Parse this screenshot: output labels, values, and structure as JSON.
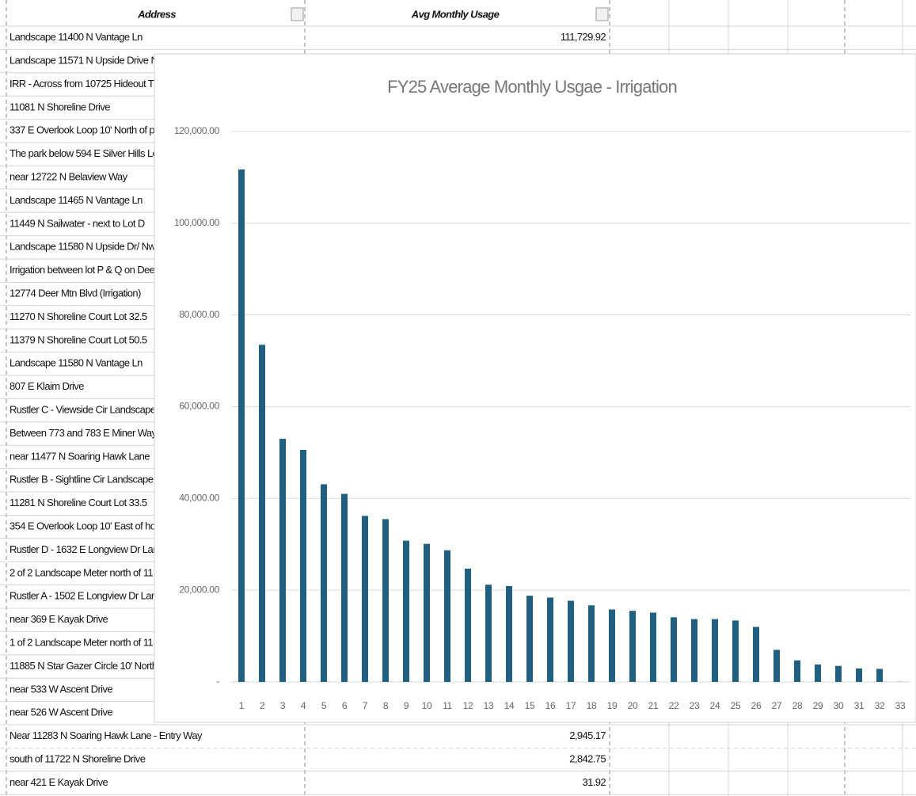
{
  "table": {
    "header": [
      "Address",
      "Avg Monthly Usage"
    ],
    "rows": [
      {
        "address": "Landscape 11400 N Vantage Ln",
        "usage": "111,729.92"
      },
      {
        "address": "Landscape 11571 N Upside Drive N"
      },
      {
        "address": "IRR - Across from 10725 Hideout T"
      },
      {
        "address": "11081 N Shoreline Drive"
      },
      {
        "address": "337 E Overlook Loop 10' North of p"
      },
      {
        "address": "The park below 594 E Silver Hills Lo"
      },
      {
        "address": "near 12722 N Belaview Way"
      },
      {
        "address": "Landscape 11465 N Vantage Ln"
      },
      {
        "address": "11449 N Sailwater - next to Lot D"
      },
      {
        "address": "Landscape 11580 N Upside Dr/ Nw"
      },
      {
        "address": "Irrigation between lot P & Q on Dee"
      },
      {
        "address": "12774 Deer Mtn Blvd (Irrigation)"
      },
      {
        "address": "11270 N Shoreline Court Lot 32.5"
      },
      {
        "address": "11379 N Shoreline Court Lot 50.5"
      },
      {
        "address": "Landscape 11580 N Vantage Ln"
      },
      {
        "address": "807 E Klaim Drive"
      },
      {
        "address": "Rustler C - Viewside Cir Landscape"
      },
      {
        "address": "Between 773 and 783 E Miner Way"
      },
      {
        "address": "near 11477 N Soaring Hawk Lane"
      },
      {
        "address": "Rustler B - Sightline Cir Landscape"
      },
      {
        "address": "11281 N Shoreline Court Lot 33.5"
      },
      {
        "address": "354 E Overlook Loop 10' East of ho"
      },
      {
        "address": "Rustler D - 1632 E Longview Dr Lar"
      },
      {
        "address": "2 of 2 Landscape Meter north of 11"
      },
      {
        "address": "Rustler A - 1502 E Longview Dr Lar"
      },
      {
        "address": "near 369 E Kayak Drive"
      },
      {
        "address": "1 of 2 Landscape Meter north of 11"
      },
      {
        "address": "11885 N Star Gazer Circle 10' North"
      },
      {
        "address": "near 533 W Ascent Drive"
      },
      {
        "address": "near 526 W Ascent Drive"
      },
      {
        "address": "Near 11283 N Soaring Hawk Lane - Entry Way",
        "usage": "2,945.17"
      },
      {
        "address": "south of 11722 N Shoreline Drive",
        "usage": "2,842.75"
      },
      {
        "address": "near 421 E Kayak Drive",
        "usage": "31.92"
      }
    ]
  },
  "chart_data": {
    "type": "bar",
    "title": "FY25 Average Monthly Usgae - Irrigation",
    "categories": [
      "1",
      "2",
      "3",
      "4",
      "5",
      "6",
      "7",
      "8",
      "9",
      "10",
      "11",
      "12",
      "13",
      "14",
      "15",
      "16",
      "17",
      "18",
      "19",
      "20",
      "21",
      "22",
      "23",
      "24",
      "25",
      "26",
      "27",
      "28",
      "29",
      "30",
      "31",
      "32",
      "33"
    ],
    "values": [
      111729.92,
      73500,
      53000,
      50600,
      43100,
      41000,
      36200,
      35500,
      30800,
      30100,
      28700,
      24700,
      21200,
      20900,
      18800,
      18400,
      17700,
      16700,
      15800,
      15500,
      15100,
      14100,
      13700,
      13700,
      13400,
      12000,
      7000,
      4700,
      3800,
      3500,
      2945.17,
      2842.75,
      31.92
    ],
    "color": "#1f5f80",
    "ylim": [
      0,
      120000
    ],
    "yticks": [
      {
        "value": 0,
        "label": "-"
      },
      {
        "value": 20000,
        "label": "20,000.00"
      },
      {
        "value": 40000,
        "label": "40,000.00"
      },
      {
        "value": 60000,
        "label": "60,000.00"
      },
      {
        "value": 80000,
        "label": "80,000.00"
      },
      {
        "value": 100000,
        "label": "100,000.00"
      },
      {
        "value": 120000,
        "label": "120,000.00"
      }
    ],
    "grid": true
  }
}
